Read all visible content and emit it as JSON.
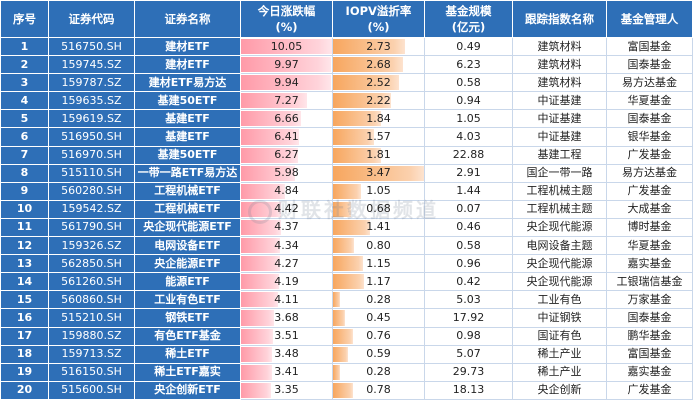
{
  "headers": {
    "idx": "序号",
    "code": "证券代码",
    "name": "证券名称",
    "change_line1": "今日涨跌幅",
    "change_line2": "(%)",
    "iopv_line1": "IOPV溢折率",
    "iopv_line2": "(%)",
    "size_line1": "基金规模",
    "size_line2": "(亿元)",
    "index": "跟踪指数名称",
    "manager": "基金管理人"
  },
  "colors": {
    "header_bg": "#2e6fb7",
    "change_bar": "#ff9aa8",
    "iopv_bar": "#f7a65e"
  },
  "watermark": "财联社数据频道",
  "rows": [
    {
      "idx": "1",
      "code": "516750.SH",
      "name": "建材ETF",
      "change": "10.05",
      "iopv": "2.73",
      "size": "0.49",
      "index": "建筑材料",
      "manager": "富国基金"
    },
    {
      "idx": "2",
      "code": "159745.SZ",
      "name": "建材ETF",
      "change": "9.97",
      "iopv": "2.68",
      "size": "6.23",
      "index": "建筑材料",
      "manager": "国泰基金"
    },
    {
      "idx": "3",
      "code": "159787.SZ",
      "name": "建材ETF易方达",
      "change": "9.94",
      "iopv": "2.52",
      "size": "0.58",
      "index": "建筑材料",
      "manager": "易方达基金"
    },
    {
      "idx": "4",
      "code": "159635.SZ",
      "name": "基建50ETF",
      "change": "7.27",
      "iopv": "2.22",
      "size": "0.94",
      "index": "中证基建",
      "manager": "华夏基金"
    },
    {
      "idx": "5",
      "code": "159619.SZ",
      "name": "基建ETF",
      "change": "6.66",
      "iopv": "1.84",
      "size": "1.05",
      "index": "中证基建",
      "manager": "国泰基金"
    },
    {
      "idx": "6",
      "code": "516950.SH",
      "name": "基建ETF",
      "change": "6.41",
      "iopv": "1.57",
      "size": "4.03",
      "index": "中证基建",
      "manager": "银华基金"
    },
    {
      "idx": "7",
      "code": "516970.SH",
      "name": "基建50ETF",
      "change": "6.27",
      "iopv": "1.81",
      "size": "22.88",
      "index": "基建工程",
      "manager": "广发基金"
    },
    {
      "idx": "8",
      "code": "515110.SH",
      "name": "一带一路ETF易方达",
      "change": "5.98",
      "iopv": "3.47",
      "size": "2.91",
      "index": "国企一带一路",
      "manager": "易方达基金"
    },
    {
      "idx": "9",
      "code": "560280.SH",
      "name": "工程机械ETF",
      "change": "4.84",
      "iopv": "1.05",
      "size": "1.44",
      "index": "工程机械主题",
      "manager": "广发基金"
    },
    {
      "idx": "10",
      "code": "159542.SZ",
      "name": "工程机械ETF",
      "change": "4.42",
      "iopv": "0.68",
      "size": "0.07",
      "index": "工程机械主题",
      "manager": "大成基金"
    },
    {
      "idx": "11",
      "code": "561790.SH",
      "name": "央企现代能源ETF",
      "change": "4.37",
      "iopv": "1.41",
      "size": "0.46",
      "index": "央企现代能源",
      "manager": "博时基金"
    },
    {
      "idx": "12",
      "code": "159326.SZ",
      "name": "电网设备ETF",
      "change": "4.34",
      "iopv": "0.80",
      "size": "0.58",
      "index": "电网设备主题",
      "manager": "华夏基金"
    },
    {
      "idx": "13",
      "code": "562850.SH",
      "name": "央企能源ETF",
      "change": "4.27",
      "iopv": "1.15",
      "size": "0.96",
      "index": "央企现代能源",
      "manager": "嘉实基金"
    },
    {
      "idx": "14",
      "code": "561260.SH",
      "name": "能源ETF",
      "change": "4.19",
      "iopv": "1.17",
      "size": "0.42",
      "index": "央企现代能源",
      "manager": "工银瑞信基金"
    },
    {
      "idx": "15",
      "code": "560860.SH",
      "name": "工业有色ETF",
      "change": "4.11",
      "iopv": "0.28",
      "size": "5.03",
      "index": "工业有色",
      "manager": "万家基金"
    },
    {
      "idx": "16",
      "code": "515210.SH",
      "name": "钢铁ETF",
      "change": "3.68",
      "iopv": "0.45",
      "size": "17.92",
      "index": "中证钢铁",
      "manager": "国泰基金"
    },
    {
      "idx": "17",
      "code": "159880.SZ",
      "name": "有色ETF基金",
      "change": "3.51",
      "iopv": "0.76",
      "size": "0.98",
      "index": "国证有色",
      "manager": "鹏华基金"
    },
    {
      "idx": "18",
      "code": "159713.SZ",
      "name": "稀土ETF",
      "change": "3.48",
      "iopv": "0.59",
      "size": "5.07",
      "index": "稀土产业",
      "manager": "富国基金"
    },
    {
      "idx": "19",
      "code": "516150.SH",
      "name": "稀土ETF嘉实",
      "change": "3.41",
      "iopv": "0.28",
      "size": "29.73",
      "index": "稀土产业",
      "manager": "嘉实基金"
    },
    {
      "idx": "20",
      "code": "515600.SH",
      "name": "央企创新ETF",
      "change": "3.35",
      "iopv": "0.78",
      "size": "18.13",
      "index": "央企创新",
      "manager": "广发基金"
    }
  ]
}
